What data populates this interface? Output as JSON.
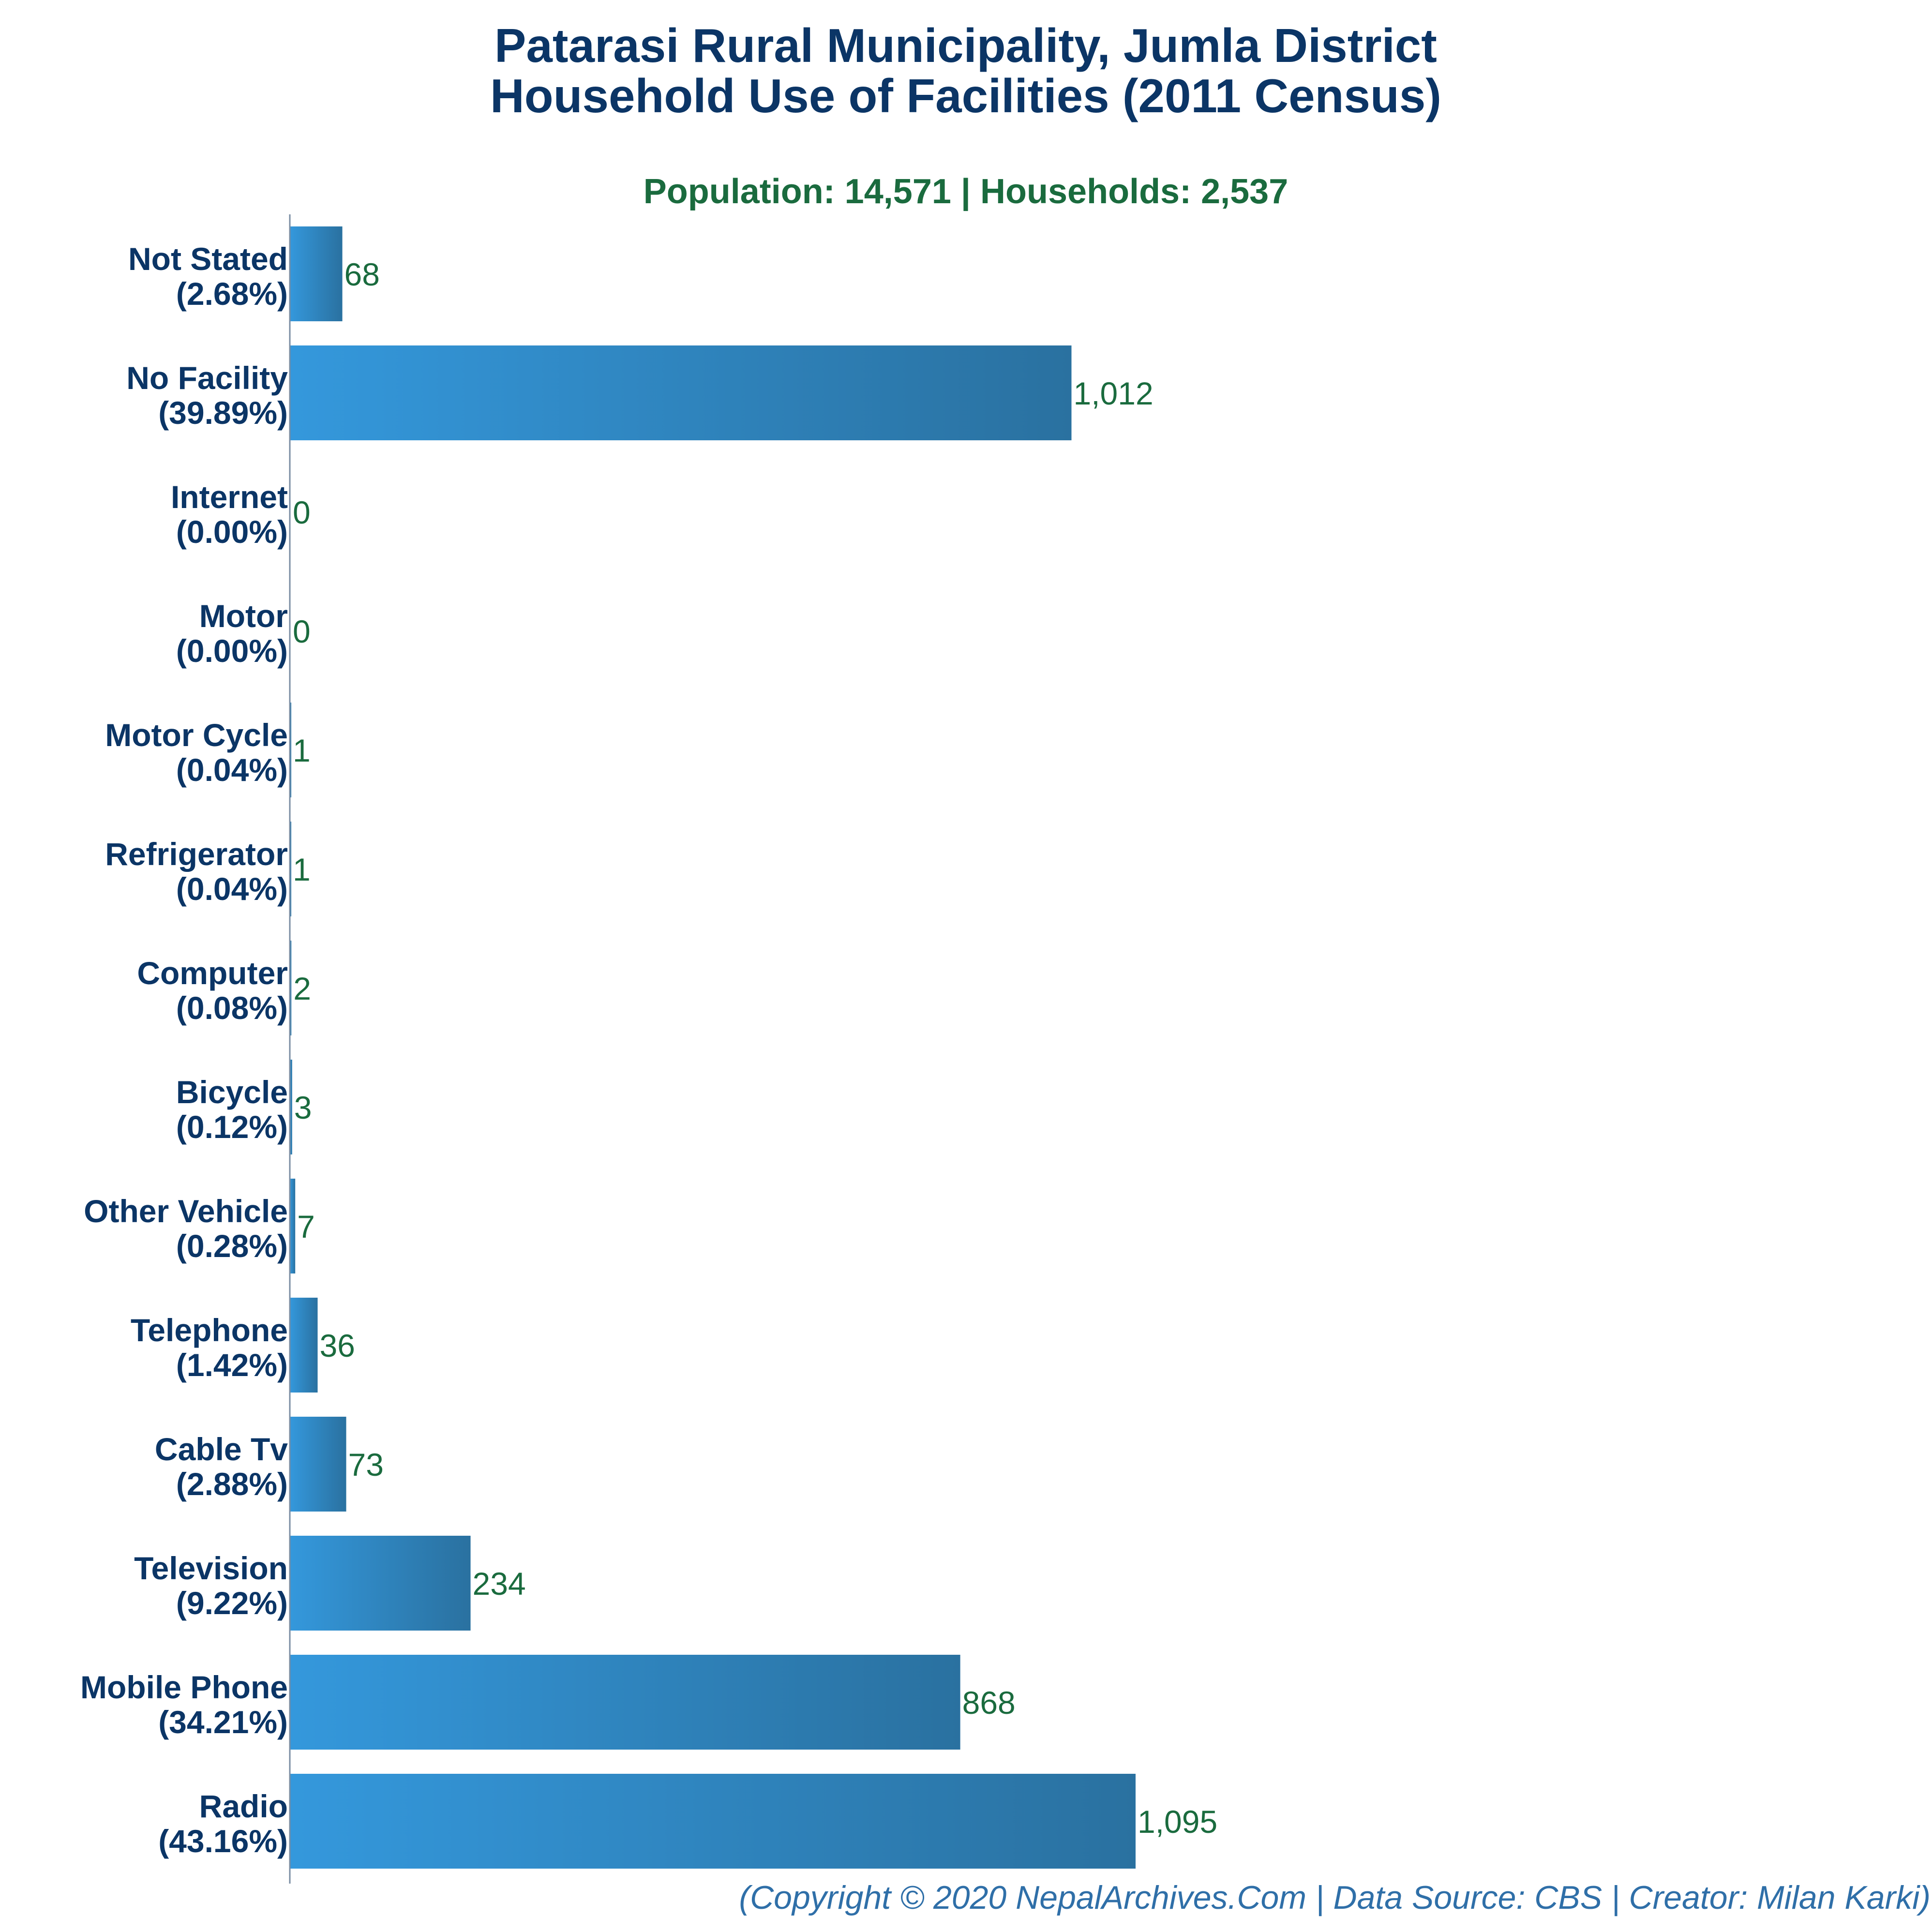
{
  "colors": {
    "title": "#0b3566",
    "subtitle": "#1a6b3e",
    "category": "#0b3566",
    "value": "#1a6b3e",
    "footer": "#2f6fa8",
    "bar_left": "#3498dc",
    "bar_right": "#2a71a0",
    "axis": "#7a8da3"
  },
  "chart_data": {
    "type": "bar",
    "orientation": "horizontal",
    "title_line1": "Patarasi Rural Municipality, Jumla District",
    "title_line2": "Household Use of Facilities (2011 Census)",
    "subtitle": "Population: 14,571 | Households: 2,537",
    "xlim": [
      0,
      1095
    ],
    "grid": false,
    "categories": [
      {
        "name": "Not Stated",
        "percent": "(2.68%)",
        "value": 68,
        "label": "68"
      },
      {
        "name": "No Facility",
        "percent": "(39.89%)",
        "value": 1012,
        "label": "1,012"
      },
      {
        "name": "Internet",
        "percent": "(0.00%)",
        "value": 0,
        "label": "0"
      },
      {
        "name": "Motor",
        "percent": "(0.00%)",
        "value": 0,
        "label": "0"
      },
      {
        "name": "Motor Cycle",
        "percent": "(0.04%)",
        "value": 1,
        "label": "1"
      },
      {
        "name": "Refrigerator",
        "percent": "(0.04%)",
        "value": 1,
        "label": "1"
      },
      {
        "name": "Computer",
        "percent": "(0.08%)",
        "value": 2,
        "label": "2"
      },
      {
        "name": "Bicycle",
        "percent": "(0.12%)",
        "value": 3,
        "label": "3"
      },
      {
        "name": "Other Vehicle",
        "percent": "(0.28%)",
        "value": 7,
        "label": "7"
      },
      {
        "name": "Telephone",
        "percent": "(1.42%)",
        "value": 36,
        "label": "36"
      },
      {
        "name": "Cable Tv",
        "percent": "(2.88%)",
        "value": 73,
        "label": "73"
      },
      {
        "name": "Television",
        "percent": "(9.22%)",
        "value": 234,
        "label": "234"
      },
      {
        "name": "Mobile Phone",
        "percent": "(34.21%)",
        "value": 868,
        "label": "868"
      },
      {
        "name": "Radio",
        "percent": "(43.16%)",
        "value": 1095,
        "label": "1,095"
      }
    ],
    "footer": "(Copyright © 2020 NepalArchives.Com | Data Source: CBS | Creator: Milan Karki)"
  }
}
